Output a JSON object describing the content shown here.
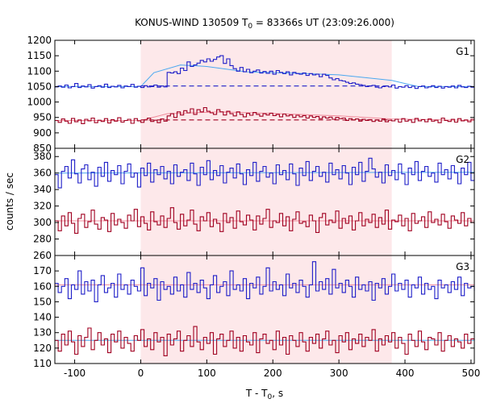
{
  "chart_data": {
    "type": "line",
    "title": "KONUS-WIND 130509 T",
    "title_sub": "0",
    "title_rest": " = 83366s UT (23:09:26.000)",
    "xlabel": "T - T",
    "xlabel_sub": "0",
    "xlabel_rest": ", s",
    "ylabel": "counts / sec",
    "xlim": [
      -130,
      505
    ],
    "xticks": [
      -100,
      0,
      100,
      200,
      300,
      400,
      500
    ],
    "highlight_interval": [
      0,
      380
    ],
    "colors": {
      "series_blue": "#1e1ec8",
      "series_red": "#a00020",
      "fit_cyan": "#4aa8f0",
      "fit_pink": "#f08a9a",
      "highlight": "#fde8ea"
    },
    "panels": [
      {
        "label": "G1",
        "ylim": [
          850,
          1200
        ],
        "yticks": [
          850,
          900,
          950,
          1000,
          1050,
          1100,
          1150,
          1200
        ],
        "series": [
          {
            "values": [
              1049,
              1052,
              1048,
              1055,
              1046,
              1050,
              1060,
              1047,
              1052,
              1049,
              1056,
              1045,
              1050,
              1053,
              1048,
              1058,
              1047,
              1051,
              1049,
              1054,
              1046,
              1052,
              1050,
              1057,
              1048,
              1051,
              1047,
              1053,
              1049,
              1050,
              1055,
              1048,
              1052,
              1049,
              1096,
              1094,
              1098,
              1092,
              1110,
              1102,
              1130,
              1115,
              1120,
              1126,
              1135,
              1130,
              1140,
              1132,
              1138,
              1146,
              1150,
              1125,
              1140,
              1118,
              1108,
              1100,
              1112,
              1098,
              1106,
              1095,
              1100,
              1104,
              1094,
              1099,
              1093,
              1100,
              1090,
              1102,
              1096,
              1092,
              1098,
              1088,
              1096,
              1092,
              1090,
              1094,
              1086,
              1092,
              1088,
              1090,
              1082,
              1090,
              1086,
              1078,
              1072,
              1076,
              1070,
              1068,
              1064,
              1060,
              1062,
              1058,
              1056,
              1054,
              1050,
              1052,
              1054,
              1048,
              1046,
              1050,
              1052,
              1049,
              1055,
              1045,
              1050,
              1048,
              1053,
              1047,
              1051,
              1044,
              1050,
              1052,
              1046,
              1049,
              1053,
              1047,
              1051,
              1045,
              1050,
              1048,
              1052,
              1046,
              1054,
              1049,
              1047,
              1051,
              1048
            ]
          },
          {
            "values": [
              940,
              934,
              945,
              938,
              931,
              947,
              936,
              942,
              930,
              944,
              939,
              948,
              933,
              941,
              937,
              946,
              932,
              943,
              938,
              949,
              935,
              940,
              944,
              931,
              946,
              939,
              934,
              942,
              948,
              937,
              941,
              933,
              945,
              938,
              955,
              962,
              950,
              968,
              958,
              972,
              965,
              978,
              960,
              975,
              968,
              982,
              970,
              965,
              960,
              975,
              968,
              958,
              970,
              962,
              955,
              968,
              960,
              952,
              963,
              957,
              966,
              960,
              954,
              962,
              958,
              964,
              956,
              960,
              952,
              961,
              955,
              958,
              950,
              957,
              952,
              956,
              948,
              955,
              950,
              953,
              946,
              952,
              948,
              951,
              944,
              950,
              946,
              948,
              940,
              946,
              942,
              945,
              938,
              944,
              940,
              943,
              937,
              942,
              938,
              945,
              936,
              941,
              939,
              944,
              935,
              946,
              938,
              942,
              934,
              947,
              939,
              943,
              936,
              945,
              938,
              941,
              933,
              948,
              940,
              937,
              944,
              935,
              946,
              939,
              942,
              936,
              944,
              940
            ]
          }
        ],
        "fits": [
          {
            "kind": "solid-cyan",
            "points": [
              [
                -130,
                1050
              ],
              [
                0,
                1050
              ],
              [
                20,
                1095
              ],
              [
                60,
                1120
              ],
              [
                100,
                1115
              ],
              [
                160,
                1098
              ],
              [
                240,
                1093
              ],
              [
                300,
                1088
              ],
              [
                380,
                1070
              ],
              [
                420,
                1050
              ],
              [
                505,
                1050
              ]
            ]
          },
          {
            "kind": "solid-pink",
            "points": [
              [
                -130,
                940
              ],
              [
                0,
                940
              ],
              [
                40,
                962
              ],
              [
                120,
                968
              ],
              [
                200,
                963
              ],
              [
                300,
                955
              ],
              [
                380,
                945
              ],
              [
                505,
                940
              ]
            ]
          },
          {
            "kind": "dashed-blue",
            "points": [
              [
                0,
                1052
              ],
              [
                380,
                1052
              ]
            ]
          },
          {
            "kind": "dashed-red",
            "points": [
              [
                0,
                942
              ],
              [
                380,
                942
              ]
            ]
          }
        ]
      },
      {
        "label": "G2",
        "ylim": [
          260,
          390
        ],
        "yticks": [
          260,
          280,
          300,
          320,
          340,
          360,
          380
        ],
        "series": [
          {
            "values": [
              358,
              342,
              362,
              368,
              354,
              376,
              359,
              348,
              365,
              370,
              352,
              361,
              344,
              367,
              356,
              373,
              350,
              363,
              358,
              369,
              347,
              362,
              371,
              355,
              360,
              343,
              366,
              357,
              372,
              349,
              364,
              358,
              368,
              353,
              362,
              347,
              370,
              356,
              361,
              364,
              351,
              372,
              359,
              345,
              367,
              358,
              375,
              352,
              363,
              357,
              369,
              348,
              361,
              366,
              354,
              371,
              359,
              346,
              364,
              357,
              373,
              350,
              362,
              368,
              355,
              360,
              347,
              370,
              358,
              363,
              352,
              371,
              359,
              345,
              366,
              357,
              374,
              351,
              362,
              368,
              356,
              361,
              349,
              372,
              358,
              364,
              353,
              369,
              360,
              346,
              367,
              358,
              373,
              350,
              362,
              378,
              365,
              355,
              361,
              348,
              370,
              357,
              363,
              352,
              371,
              359,
              346,
              366,
              358,
              374,
              351,
              362,
              368,
              356,
              360,
              349,
              372,
              358,
              364,
              353,
              369,
              360,
              347,
              366,
              358,
              373,
              351,
              362
            ]
          },
          {
            "values": [
              302,
              290,
              308,
              296,
              312,
              299,
              287,
              305,
              310,
              294,
              301,
              315,
              298,
              292,
              306,
              303,
              289,
              311,
              297,
              304,
              300,
              293,
              309,
              302,
              316,
              295,
              307,
              299,
              291,
              313,
              301,
              297,
              308,
              294,
              305,
              318,
              300,
              292,
              310,
              296,
              303,
              315,
              298,
              290,
              307,
              302,
              312,
              295,
              304,
              299,
              289,
              311,
              300,
              306,
              293,
              314,
              301,
              297,
              309,
              303,
              291,
              308,
              298,
              305,
              316,
              294,
              302,
              300,
              311,
              296,
              307,
              290,
              304,
              313,
              299,
              301,
              295,
              309,
              302,
              288,
              306,
              311,
              297,
              303,
              300,
              314,
              293,
              305,
              299,
              308,
              291,
              302,
              312,
              296,
              304,
              300,
              310,
              294,
              306,
              298,
              315,
              292,
              303,
              301,
              309,
              296,
              305,
              290,
              311,
              299,
              302,
              307,
              294,
              313,
              300,
              304,
              297,
              310,
              301,
              293,
              308,
              303,
              299,
              312,
              296,
              305,
              300,
              298
            ]
          }
        ],
        "fits": [
          {
            "kind": "solid-cyan",
            "points": [
              [
                -130,
                360
              ],
              [
                505,
                361
              ]
            ]
          },
          {
            "kind": "solid-pink",
            "points": [
              [
                -130,
                302
              ],
              [
                505,
                302
              ]
            ]
          }
        ]
      },
      {
        "label": "G3",
        "ylim": [
          110,
          180
        ],
        "yticks": [
          110,
          120,
          130,
          140,
          150,
          160,
          170
        ],
        "series": [
          {
            "values": [
              162,
              156,
              160,
              165,
              152,
              161,
              158,
              170,
              155,
              163,
              157,
              164,
              150,
              161,
              167,
              156,
              159,
              162,
              153,
              168,
              158,
              161,
              155,
              164,
              160,
              157,
              172,
              154,
              162,
              159,
              165,
              151,
              163,
              158,
              160,
              155,
              166,
              157,
              161,
              153,
              169,
              158,
              162,
              156,
              164,
              159,
              152,
              161,
              167,
              156,
              160,
              163,
              154,
              170,
              158,
              161,
              157,
              165,
              152,
              162,
              159,
              166,
              155,
              160,
              172,
              157,
              163,
              158,
              161,
              154,
              168,
              159,
              162,
              156,
              164,
              160,
              153,
              161,
              176,
              157,
              163,
              158,
              165,
              155,
              171,
              159,
              162,
              156,
              164,
              160,
              153,
              166,
              158,
              161,
              157,
              163,
              151,
              162,
              159,
              165,
              155,
              160,
              168,
              157,
              162,
              158,
              164,
              153,
              161,
              159,
              166,
              155,
              162,
              158,
              160,
              152,
              164,
              159,
              161,
              156,
              163,
              158,
              166,
              154,
              162,
              159,
              160,
              157
            ]
          },
          {
            "values": [
              125,
              118,
              129,
              122,
              131,
              124,
              116,
              128,
              121,
              127,
              133,
              119,
              125,
              130,
              122,
              126,
              117,
              129,
              124,
              131,
              120,
              127,
              123,
              118,
              128,
              125,
              132,
              121,
              126,
              119,
              130,
              124,
              127,
              115,
              129,
              122,
              126,
              131,
              118,
              125,
              128,
              121,
              134,
              124,
              119,
              127,
              123,
              130,
              116,
              126,
              129,
              121,
              125,
              131,
              120,
              127,
              118,
              128,
              124,
              122,
              130,
              117,
              126,
              129,
              123,
              125,
              119,
              131,
              122,
              127,
              116,
              128,
              125,
              121,
              130,
              124,
              118,
              127,
              123,
              129,
              120,
              126,
              131,
              122,
              125,
              117,
              128,
              124,
              130,
              119,
              126,
              123,
              129,
              121,
              127,
              125,
              132,
              118,
              126,
              122,
              128,
              124,
              130,
              120,
              127,
              123,
              116,
              129,
              125,
              121,
              131,
              124,
              119,
              127,
              126,
              122,
              130,
              118,
              125,
              128,
              121,
              126,
              124,
              120,
              129,
              123,
              126,
              125
            ]
          }
        ],
        "fits": [
          {
            "kind": "solid-cyan",
            "points": [
              [
                -130,
                125
              ],
              [
                505,
                125
              ]
            ]
          },
          {
            "kind": "solid-pink",
            "points": [
              [
                -130,
                161
              ],
              [
                505,
                161
              ]
            ]
          }
        ]
      }
    ]
  }
}
